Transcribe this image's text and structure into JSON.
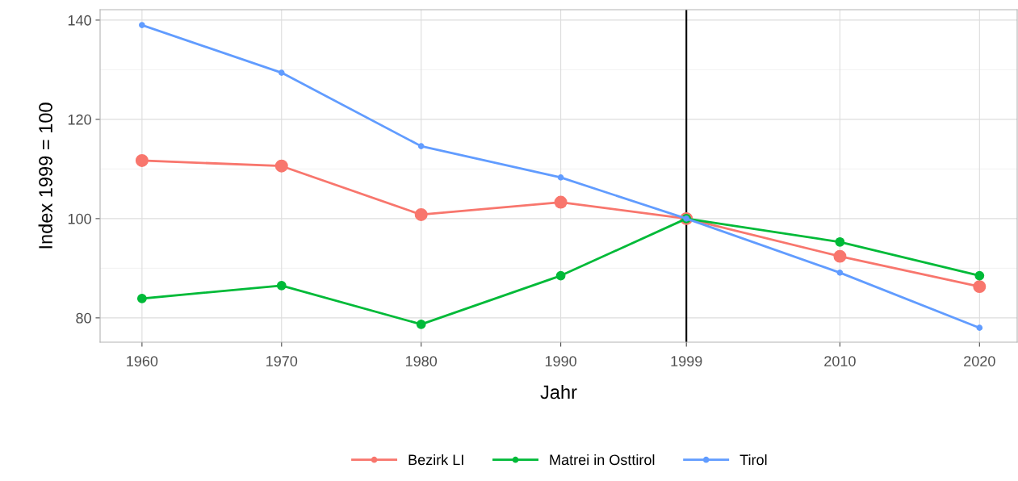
{
  "chart_data": {
    "type": "line",
    "xlabel": "Jahr",
    "ylabel": "Index 1999 = 100",
    "x": [
      1960,
      1970,
      1980,
      1990,
      1999,
      2010,
      2020
    ],
    "series": [
      {
        "name": "Bezirk LI",
        "color": "#f8766d",
        "values": [
          111.7,
          110.6,
          100.8,
          103.3,
          100,
          92.4,
          86.3
        ]
      },
      {
        "name": "Matrei in Osttirol",
        "color": "#00ba38",
        "values": [
          83.9,
          86.5,
          78.7,
          88.5,
          100,
          95.3,
          88.5
        ]
      },
      {
        "name": "Tirol",
        "color": "#619cff",
        "values": [
          139.0,
          129.4,
          114.6,
          108.3,
          100,
          89.1,
          78.0
        ]
      }
    ],
    "xlim": [
      1957,
      2022.7
    ],
    "ylim": [
      75.1,
      142.1
    ],
    "xticks": [
      1960,
      1970,
      1980,
      1990,
      1999,
      2010,
      2020
    ],
    "yticks": [
      80,
      100,
      120,
      140
    ],
    "ref_lines": [
      {
        "axis": "x",
        "value": 1999,
        "color": "#000000"
      }
    ],
    "grid": true,
    "legend": "bottom",
    "marker": "circle",
    "line_style": "solid"
  }
}
